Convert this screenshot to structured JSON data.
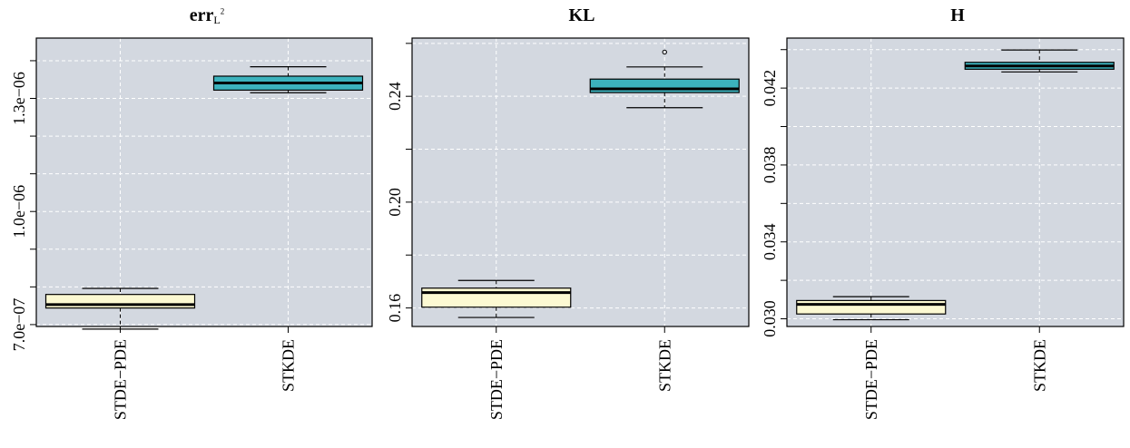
{
  "colors": {
    "panel_bg": "#d3d8e0",
    "grid": "#ffffff",
    "box_left": "#fcf9d2",
    "box_right": "#3cb2bd",
    "axis": "#000000"
  },
  "chart_data": [
    {
      "type": "boxplot",
      "title": "err",
      "title_sub": "L",
      "title_sup": "2",
      "categories": [
        "STDE−PDE",
        "STKDE"
      ],
      "ylim": [
        6.95e-07,
        1.46e-06
      ],
      "yticks": [
        7e-07,
        1e-06,
        1.3e-06
      ],
      "ytick_labels": [
        "7.0e−07",
        "1.0e−06",
        "1.3e−06"
      ],
      "minor_ticks": [
        8e-07,
        9e-07,
        1.1e-06,
        1.2e-06,
        1.4e-06
      ],
      "grid": true,
      "boxes": [
        {
          "min": 6.88e-07,
          "q1": 7.44e-07,
          "median": 7.53e-07,
          "q3": 7.8e-07,
          "max": 7.96e-07,
          "outliers": []
        },
        {
          "min": 1.315e-06,
          "q1": 1.322e-06,
          "median": 1.341e-06,
          "q3": 1.359e-06,
          "max": 1.384e-06,
          "outliers": []
        }
      ]
    },
    {
      "type": "boxplot",
      "title": "KL",
      "categories": [
        "STDE−PDE",
        "STKDE"
      ],
      "ylim": [
        0.153,
        0.262
      ],
      "yticks": [
        0.16,
        0.2,
        0.24
      ],
      "ytick_labels": [
        "0.16",
        "0.20",
        "0.24"
      ],
      "minor_ticks": [
        0.18,
        0.22,
        0.26
      ],
      "grid": true,
      "boxes": [
        {
          "min": 0.1564,
          "q1": 0.1603,
          "median": 0.1658,
          "q3": 0.1675,
          "max": 0.1704,
          "outliers": []
        },
        {
          "min": 0.2357,
          "q1": 0.2414,
          "median": 0.2428,
          "q3": 0.2465,
          "max": 0.2511,
          "outliers": [
            0.2567
          ]
        }
      ]
    },
    {
      "type": "boxplot",
      "title": "H",
      "categories": [
        "STDE−PDE",
        "STKDE"
      ],
      "ylim": [
        0.0296,
        0.0446
      ],
      "yticks": [
        0.03,
        0.034,
        0.038,
        0.042
      ],
      "ytick_labels": [
        "0.030",
        "0.034",
        "0.038",
        "0.042"
      ],
      "minor_ticks": [
        0.032,
        0.036,
        0.04,
        0.044
      ],
      "grid": true,
      "boxes": [
        {
          "min": 0.02995,
          "q1": 0.03025,
          "median": 0.03075,
          "q3": 0.03095,
          "max": 0.03115,
          "outliers": []
        },
        {
          "min": 0.04284,
          "q1": 0.04298,
          "median": 0.04315,
          "q3": 0.04334,
          "max": 0.04398,
          "outliers": []
        }
      ]
    }
  ]
}
